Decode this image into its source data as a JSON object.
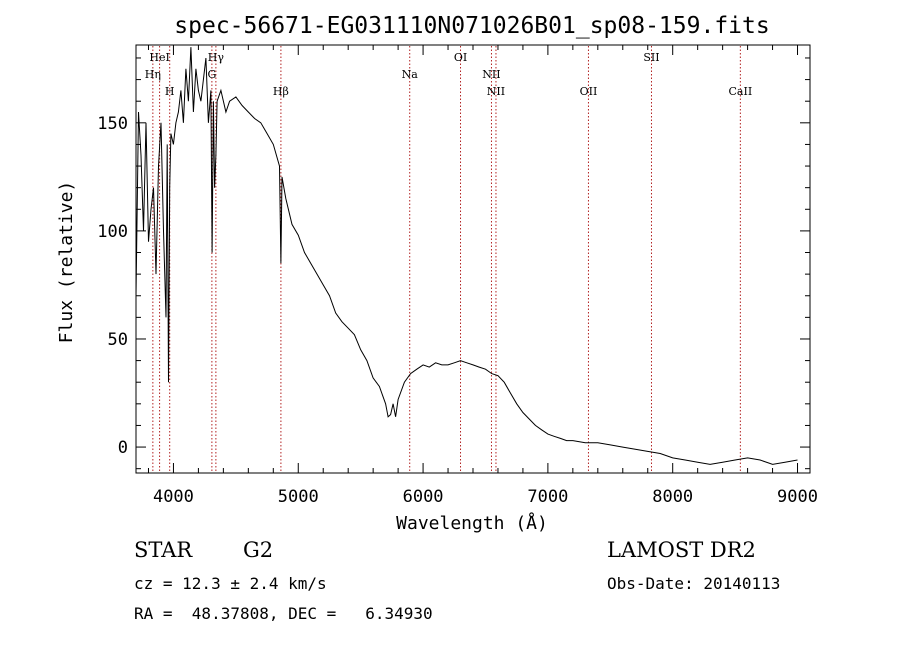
{
  "chart_data": {
    "type": "line",
    "title": "spec-56671-EG031110N071026B01_sp08-159.fits",
    "xlabel": "Wavelength (Å)",
    "ylabel": "Flux (relative)",
    "xlim": [
      3700,
      9100
    ],
    "ylim": [
      -12,
      186
    ],
    "x_ticks": [
      4000,
      5000,
      6000,
      7000,
      8000,
      9000
    ],
    "y_ticks": [
      0,
      50,
      100,
      150
    ],
    "grid": false,
    "series": [
      {
        "color": "#000000",
        "x": [
          3700,
          3720,
          3740,
          3760,
          3780,
          3800,
          3820,
          3840,
          3860,
          3880,
          3900,
          3920,
          3940,
          3950,
          3960,
          3970,
          3980,
          4000,
          4020,
          4040,
          4060,
          4080,
          4100,
          4120,
          4140,
          4160,
          4180,
          4200,
          4220,
          4240,
          4260,
          4280,
          4300,
          4310,
          4320,
          4330,
          4340,
          4350,
          4380,
          4400,
          4420,
          4450,
          4500,
          4550,
          4600,
          4650,
          4700,
          4750,
          4800,
          4850,
          4861,
          4870,
          4900,
          4950,
          5000,
          5050,
          5100,
          5150,
          5200,
          5250,
          5300,
          5350,
          5400,
          5450,
          5500,
          5550,
          5600,
          5650,
          5700,
          5720,
          5740,
          5760,
          5780,
          5800,
          5850,
          5900,
          5950,
          6000,
          6050,
          6100,
          6150,
          6200,
          6250,
          6300,
          6350,
          6400,
          6450,
          6500,
          6550,
          6600,
          6650,
          6700,
          6750,
          6800,
          6850,
          6900,
          6950,
          7000,
          7050,
          7100,
          7150,
          7200,
          7300,
          7400,
          7500,
          7600,
          7700,
          7800,
          7900,
          8000,
          8100,
          8200,
          8300,
          8400,
          8500,
          8600,
          8700,
          8800,
          8900,
          9000
        ],
        "y": [
          70,
          155,
          135,
          100,
          150,
          95,
          110,
          120,
          80,
          130,
          150,
          100,
          60,
          140,
          30,
          120,
          145,
          140,
          150,
          155,
          165,
          150,
          175,
          160,
          185,
          155,
          175,
          165,
          160,
          170,
          180,
          150,
          165,
          90,
          160,
          120,
          135,
          160,
          165,
          160,
          155,
          160,
          162,
          158,
          155,
          152,
          150,
          145,
          140,
          130,
          85,
          125,
          115,
          103,
          98,
          90,
          85,
          80,
          75,
          70,
          62,
          58,
          55,
          52,
          45,
          40,
          32,
          28,
          20,
          14,
          15,
          20,
          14,
          22,
          30,
          34,
          36,
          38,
          37,
          39,
          38,
          38,
          39,
          40,
          39,
          38,
          37,
          36,
          34,
          33,
          30,
          25,
          20,
          16,
          13,
          10,
          8,
          6,
          5,
          4,
          3,
          3,
          2,
          2,
          1,
          0,
          -1,
          -2,
          -3,
          -5,
          -6,
          -7,
          -8,
          -7,
          -6,
          -5,
          -6,
          -8,
          -7,
          -6
        ]
      }
    ],
    "annotations": [
      {
        "label": "Hη",
        "x": 3835,
        "row": 2
      },
      {
        "label": "HeI",
        "x": 3889,
        "row": 1
      },
      {
        "label": "H",
        "x": 3970,
        "row": 3
      },
      {
        "label": "Hγ",
        "x": 4340,
        "row": 1
      },
      {
        "label": "G",
        "x": 4308,
        "row": 2
      },
      {
        "label": "Hβ",
        "x": 4861,
        "row": 3
      },
      {
        "label": "Na",
        "x": 5893,
        "row": 2
      },
      {
        "label": "OI",
        "x": 6300,
        "row": 1
      },
      {
        "label": "NII",
        "x": 6548,
        "row": 2
      },
      {
        "label": "NII",
        "x": 6584,
        "row": 3
      },
      {
        "label": "OII",
        "x": 7325,
        "row": 3
      },
      {
        "label": "SII",
        "x": 7830,
        "row": 1
      },
      {
        "label": "CaII",
        "x": 8542,
        "row": 3
      }
    ],
    "line_color": "#b22222"
  },
  "footer": {
    "object_type": "STAR",
    "subclass": "G2",
    "survey": "LAMOST DR2",
    "redshift": "cz = 12.3 ± 2.4 km/s",
    "obs_date": "Obs-Date: 20140113",
    "coords": "RA =  48.37808, DEC =   6.34930"
  }
}
